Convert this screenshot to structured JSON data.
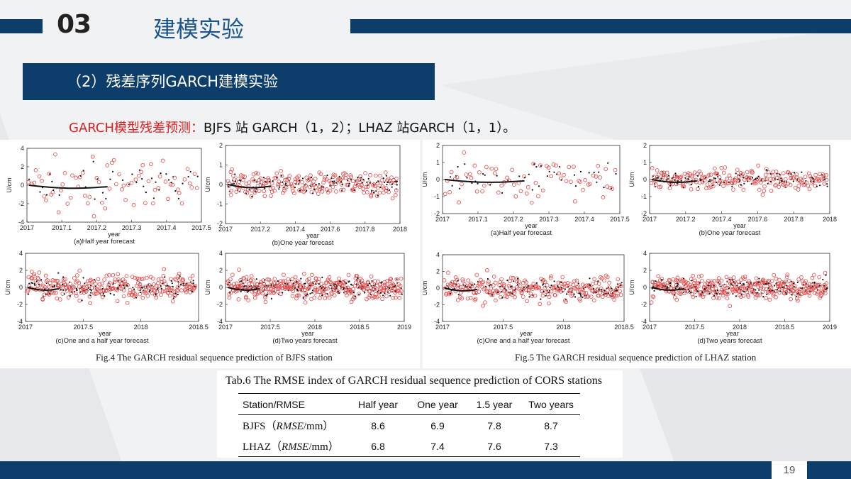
{
  "header": {
    "section_number": "03",
    "section_title": "建模实验"
  },
  "subheading": "（2）残差序列GARCH建模实验",
  "note": {
    "prefix": "GARCH模型残差预测：",
    "text": "BJFS 站 GARCH（1，2）；LHAZ 站GARCH（1，1）。"
  },
  "page_number": "19",
  "colors": {
    "navy": "#0d3e6b",
    "red_highlight": "#e02020",
    "sample_red": "#e55555"
  },
  "figures": [
    {
      "caption": "Fig.4 The GARCH residual sequence prediction of BJFS station",
      "panels": [
        {
          "caption": "(a)Half year forecast",
          "ylabel": "U/cm",
          "xlabel": "year",
          "ylim": [
            -4,
            4
          ],
          "yticks": [
            "4",
            "2",
            "0",
            "-2",
            "-4"
          ],
          "xticks": [
            "2017",
            "2017.1",
            "2017.2",
            "2017.3",
            "2017.4",
            "2017.5"
          ]
        },
        {
          "caption": "(b)One year forecast",
          "ylabel": "U/cm",
          "xlabel": "year",
          "ylim": [
            -2,
            2
          ],
          "yticks": [
            "2",
            "1",
            "0",
            "-1",
            "-2"
          ],
          "xticks": [
            "2017",
            "2017.2",
            "2017.4",
            "2017.6",
            "2017.8",
            "2018"
          ]
        },
        {
          "caption": "(c)One and a half year forecast",
          "ylabel": "U/cm",
          "xlabel": "year",
          "ylim": [
            -4,
            4
          ],
          "yticks": [
            "4",
            "2",
            "0",
            "-2",
            "-4"
          ],
          "xticks": [
            "2017",
            "2017.5",
            "2018",
            "2018.5"
          ]
        },
        {
          "caption": "(d)Two years  forecast",
          "ylabel": "U/cm",
          "xlabel": "year",
          "ylim": [
            -4,
            4
          ],
          "yticks": [
            "4",
            "2",
            "0",
            "-2",
            "-4"
          ],
          "xticks": [
            "2017",
            "2017.5",
            "2018",
            "2018.5",
            "2019"
          ]
        }
      ]
    },
    {
      "caption": "Fig.5 The GARCH residual sequence prediction of LHAZ station",
      "panels": [
        {
          "caption": "(a)Half year forecast",
          "ylabel": "U/cm",
          "xlabel": "year",
          "ylim": [
            -2,
            2
          ],
          "yticks": [
            "2",
            "1",
            "0",
            "-1",
            "-2"
          ],
          "xticks": [
            "2017",
            "2017.1",
            "2017.2",
            "2017.3",
            "2017.4",
            "2017.5"
          ]
        },
        {
          "caption": "(b)One year forecast",
          "ylabel": "U/cm",
          "xlabel": "year",
          "ylim": [
            -2,
            2
          ],
          "yticks": [
            "2",
            "1",
            "0",
            "-1",
            "-2"
          ],
          "xticks": [
            "2017",
            "2017.2",
            "2017.4",
            "2017.6",
            "2017.8",
            "2018"
          ]
        },
        {
          "caption": "(c)One and a half year forecast",
          "ylabel": "U/cm",
          "xlabel": "year",
          "ylim": [
            -4,
            4
          ],
          "yticks": [
            "4",
            "2",
            "0",
            "-2",
            "-4"
          ],
          "xticks": [
            "2017",
            "2017.5",
            "2018",
            "2018.5"
          ]
        },
        {
          "caption": "(d)Two years forecast",
          "ylabel": "U/cm",
          "xlabel": "year",
          "ylim": [
            -4,
            4
          ],
          "yticks": [
            "4",
            "2",
            "0",
            "-2",
            "-4"
          ],
          "xticks": [
            "2017",
            "2017.5",
            "2018",
            "2018.5",
            "2019"
          ]
        }
      ]
    }
  ],
  "table": {
    "title": "Tab.6 The RMSE index of GARCH residual sequence prediction of CORS stations",
    "headers": [
      "Station/RMSE",
      "Half year",
      "One year",
      "1.5 year",
      "Two years"
    ],
    "rows": [
      {
        "station": "BJFS",
        "unit_open": "（",
        "unit_italic": "RMSE",
        "unit_close": "/mm）",
        "values": [
          "8.6",
          "6.9",
          "7.8",
          "8.7"
        ]
      },
      {
        "station": "LHAZ",
        "unit_open": "（",
        "unit_italic": "RMSE",
        "unit_close": "/mm）",
        "values": [
          "6.8",
          "7.4",
          "7.6",
          "7.3"
        ]
      }
    ]
  }
}
